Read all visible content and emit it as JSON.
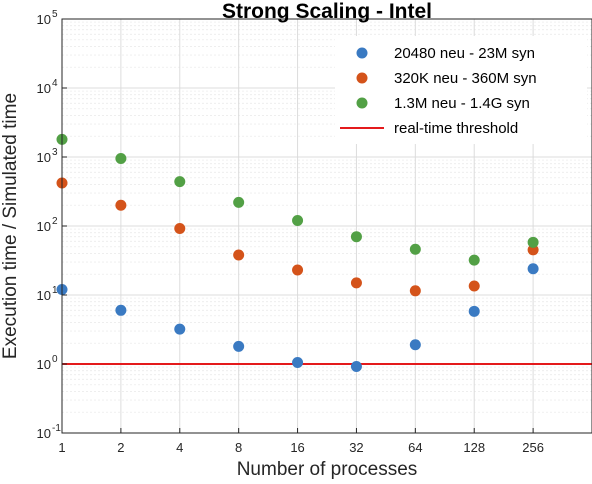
{
  "chart_data": {
    "type": "scatter",
    "title": "Strong Scaling - Intel",
    "xlabel": "Number of processes",
    "ylabel": "Execution time / Simulated time",
    "x_scale": "log2",
    "y_scale": "log10",
    "xlim": [
      1,
      512
    ],
    "ylim": [
      0.1,
      100000
    ],
    "x_ticks": [
      1,
      2,
      4,
      8,
      16,
      32,
      64,
      128,
      256
    ],
    "x_tick_labels": [
      "1",
      "2",
      "4",
      "8",
      "16",
      "32",
      "64",
      "128",
      "256"
    ],
    "y_ticks": [
      {
        "value": 0.1,
        "base": "10",
        "exp": "-1"
      },
      {
        "value": 1,
        "base": "10",
        "exp": "0"
      },
      {
        "value": 10,
        "base": "10",
        "exp": "1"
      },
      {
        "value": 100,
        "base": "10",
        "exp": "2"
      },
      {
        "value": 1000,
        "base": "10",
        "exp": "3"
      },
      {
        "value": 10000,
        "base": "10",
        "exp": "4"
      },
      {
        "value": 100000,
        "base": "10",
        "exp": "5"
      }
    ],
    "grid": true,
    "legend_position": "top-right",
    "series": [
      {
        "name": "20480 neu - 23M syn",
        "color": "#3a7ac2",
        "x": [
          1,
          2,
          4,
          8,
          16,
          32,
          64,
          128,
          256
        ],
        "y": [
          12,
          6,
          3.2,
          1.8,
          1.05,
          0.92,
          1.9,
          5.8,
          24
        ]
      },
      {
        "name": "320K neu - 360M syn",
        "color": "#d4531a",
        "x": [
          1,
          2,
          4,
          8,
          16,
          32,
          64,
          128,
          256
        ],
        "y": [
          420,
          200,
          92,
          38,
          23,
          15,
          11.5,
          13.5,
          45
        ]
      },
      {
        "name": "1.3M neu - 1.4G syn",
        "color": "#52a045",
        "x": [
          1,
          2,
          4,
          8,
          16,
          32,
          64,
          128,
          256
        ],
        "y": [
          1800,
          950,
          440,
          220,
          120,
          70,
          46,
          32,
          58
        ]
      }
    ],
    "threshold": {
      "name": "real-time threshold",
      "y": 1,
      "color": "#e41a1c"
    }
  }
}
